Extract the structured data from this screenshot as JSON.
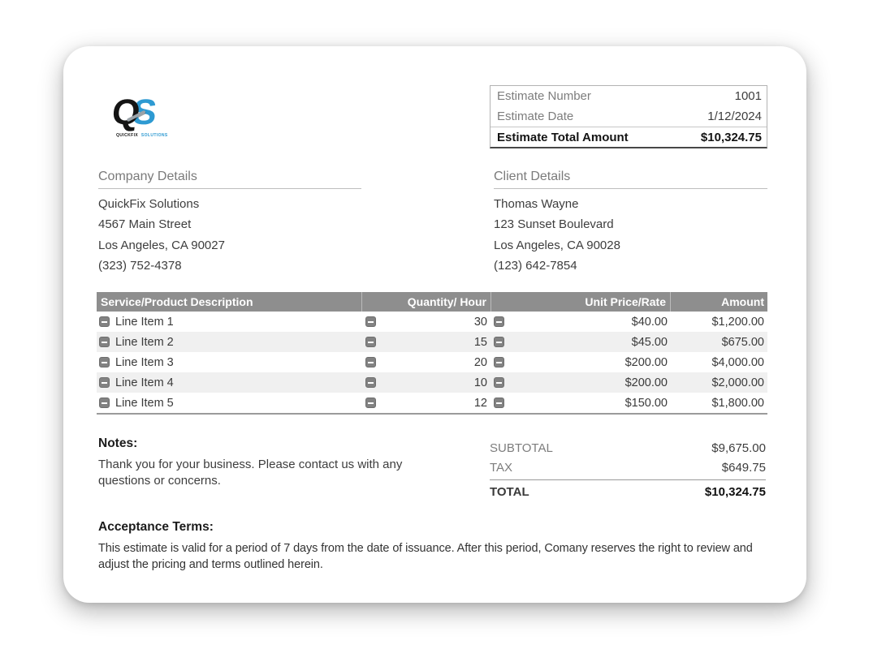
{
  "logo": {
    "monogram_q": "Q",
    "monogram_s": "S",
    "caption_primary": "QUICKFIX",
    "caption_secondary": "SOLUTIONS"
  },
  "estimate_summary": {
    "rows": [
      {
        "label": "Estimate Number",
        "value": "1001"
      },
      {
        "label": "Estimate Date",
        "value": "1/12/2024"
      },
      {
        "label": "Estimate Total Amount",
        "value": "$10,324.75"
      }
    ]
  },
  "company": {
    "heading": "Company Details",
    "lines": [
      "QuickFix Solutions",
      "4567 Main Street",
      "Los Angeles, CA 90027",
      "(323) 752-4378"
    ]
  },
  "client": {
    "heading": "Client Details",
    "lines": [
      "Thomas Wayne",
      "123 Sunset Boulevard",
      "Los Angeles, CA 90028",
      "(123) 642-7854"
    ]
  },
  "items_table": {
    "headers": [
      "Service/Product Description",
      "Quantity/ Hour",
      "Unit Price/Rate",
      "Amount"
    ],
    "rows": [
      {
        "description": "Line Item 1",
        "quantity": "30",
        "unit_price": "$40.00",
        "amount": "$1,200.00"
      },
      {
        "description": "Line Item 2",
        "quantity": "15",
        "unit_price": "$45.00",
        "amount": "$675.00"
      },
      {
        "description": "Line Item 3",
        "quantity": "20",
        "unit_price": "$200.00",
        "amount": "$4,000.00"
      },
      {
        "description": "Line Item 4",
        "quantity": "10",
        "unit_price": "$200.00",
        "amount": "$2,000.00"
      },
      {
        "description": "Line Item 5",
        "quantity": "12",
        "unit_price": "$150.00",
        "amount": "$1,800.00"
      }
    ]
  },
  "notes": {
    "heading": "Notes:",
    "body": "Thank you for your business. Please contact us with any questions or concerns."
  },
  "totals": {
    "rows": [
      {
        "label": "SUBTOTAL",
        "value": "$9,675.00"
      },
      {
        "label": "TAX",
        "value": "$649.75"
      },
      {
        "label": "TOTAL",
        "value": "$10,324.75"
      }
    ]
  },
  "acceptance": {
    "heading": "Acceptance Terms:",
    "body": "This estimate is valid for a period of 7 days from the date of issuance. After this period, Comany reserves the right to review and adjust the pricing and terms outlined herein."
  },
  "icons": {
    "row_action": "minus-icon"
  },
  "colors": {
    "accent_blue": "#2e9ad2",
    "table_header_gray": "#8e8e8e",
    "alt_row_gray": "#f0f0f0",
    "label_gray": "#7d7d7d",
    "text_dark": "#3d3d3d"
  }
}
